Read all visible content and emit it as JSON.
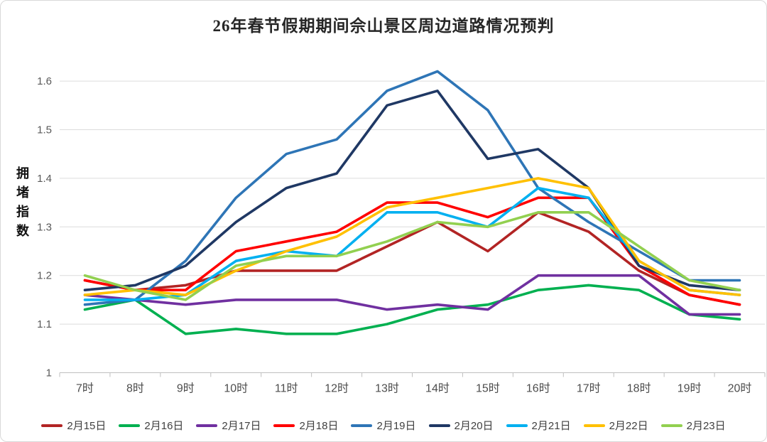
{
  "chart_data": {
    "type": "line",
    "title": "26年春节假期期间佘山景区周边道路情况预判",
    "ylabel": "拥堵指数",
    "xlabel": "",
    "ylim": [
      1,
      1.6
    ],
    "ytick_labels": [
      "1",
      "1.1",
      "1.2",
      "1.3",
      "1.4",
      "1.5",
      "1.6"
    ],
    "categories": [
      "7时",
      "8时",
      "9时",
      "10时",
      "11时",
      "12时",
      "13时",
      "14时",
      "15时",
      "16时",
      "17时",
      "18时",
      "19时",
      "20时"
    ],
    "grid": "horizontal",
    "legend_position": "bottom",
    "series": [
      {
        "name": "2月15日",
        "color": "#B22424",
        "values": [
          1.19,
          1.17,
          1.18,
          1.21,
          1.21,
          1.21,
          1.26,
          1.31,
          1.25,
          1.33,
          1.29,
          1.21,
          1.16,
          1.14
        ]
      },
      {
        "name": "2月16日",
        "color": "#00B050",
        "values": [
          1.13,
          1.15,
          1.08,
          1.09,
          1.08,
          1.08,
          1.1,
          1.13,
          1.14,
          1.17,
          1.18,
          1.17,
          1.12,
          1.11
        ]
      },
      {
        "name": "2月17日",
        "color": "#7030A0",
        "values": [
          1.16,
          1.15,
          1.14,
          1.15,
          1.15,
          1.15,
          1.13,
          1.14,
          1.13,
          1.2,
          1.2,
          1.2,
          1.12,
          1.12
        ]
      },
      {
        "name": "2月18日",
        "color": "#FF0000",
        "values": [
          1.19,
          1.17,
          1.17,
          1.25,
          1.27,
          1.29,
          1.35,
          1.35,
          1.32,
          1.36,
          1.36,
          1.22,
          1.16,
          1.14
        ]
      },
      {
        "name": "2月19日",
        "color": "#2E75B6",
        "values": [
          1.14,
          1.15,
          1.23,
          1.36,
          1.45,
          1.48,
          1.58,
          1.62,
          1.54,
          1.38,
          1.31,
          1.25,
          1.19,
          1.19
        ]
      },
      {
        "name": "2月20日",
        "color": "#1F3864",
        "values": [
          1.17,
          1.18,
          1.22,
          1.31,
          1.38,
          1.41,
          1.55,
          1.58,
          1.44,
          1.46,
          1.38,
          1.22,
          1.18,
          1.17
        ]
      },
      {
        "name": "2月21日",
        "color": "#00B0F0",
        "values": [
          1.15,
          1.15,
          1.16,
          1.23,
          1.25,
          1.24,
          1.33,
          1.33,
          1.3,
          1.38,
          1.36,
          1.23,
          1.17,
          1.16
        ]
      },
      {
        "name": "2月22日",
        "color": "#FFC000",
        "values": [
          1.16,
          1.17,
          1.16,
          1.21,
          1.25,
          1.28,
          1.34,
          1.36,
          1.38,
          1.4,
          1.38,
          1.23,
          1.17,
          1.16
        ]
      },
      {
        "name": "2月23日",
        "color": "#92D050",
        "values": [
          1.2,
          1.17,
          1.15,
          1.22,
          1.24,
          1.24,
          1.27,
          1.31,
          1.3,
          1.33,
          1.33,
          1.26,
          1.19,
          1.17
        ]
      }
    ]
  },
  "colors": {
    "background": "#FFFFFF",
    "card_border": "#D9D9D9",
    "gridline": "#DCDCDC",
    "axis_line": "#BFBFBF",
    "title_text": "#262626",
    "tick_text": "#595959",
    "xlabel_text": "#4D4D4D",
    "legend_text": "#404040"
  }
}
